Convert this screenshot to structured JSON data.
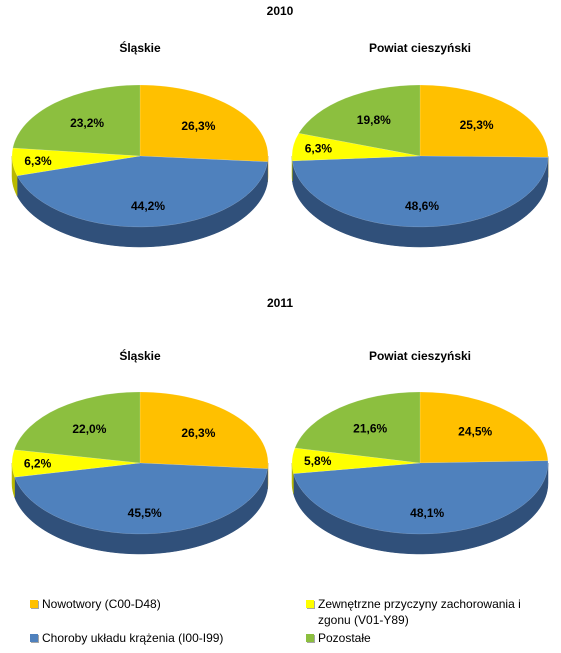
{
  "categories": [
    "Nowotwory  (C00-D48)",
    "Choroby układu krążenia  (I00-I99)",
    "Zewnętrzne przyczyny zachorowania i zgonu (V01-Y89)",
    "Pozostałe"
  ],
  "colors": {
    "Nowotwory": "#FFC000",
    "Choroby układu krążenia": "#4F81BD",
    "Zewnętrzne przyczyny": "#FFFF00",
    "Pozostałe": "#8CBF3F"
  },
  "chart_data": [
    {
      "type": "pie",
      "year": "2010",
      "title": "Śląskie",
      "slices": [
        {
          "category": "Nowotwory  (C00-D48)",
          "value": 26.3,
          "label": "26,3%"
        },
        {
          "category": "Choroby układu krążenia  (I00-I99)",
          "value": 44.2,
          "label": "44,2%"
        },
        {
          "category": "Zewnętrzne przyczyny zachorowania i zgonu (V01-Y89)",
          "value": 6.3,
          "label": "6,3%"
        },
        {
          "category": "Pozostałe",
          "value": 23.2,
          "label": "23,2%"
        }
      ]
    },
    {
      "type": "pie",
      "year": "2010",
      "title": "Powiat cieszyński",
      "slices": [
        {
          "category": "Nowotwory  (C00-D48)",
          "value": 25.3,
          "label": "25,3%"
        },
        {
          "category": "Choroby układu krążenia  (I00-I99)",
          "value": 48.6,
          "label": "48,6%"
        },
        {
          "category": "Zewnętrzne przyczyny zachorowania i zgonu (V01-Y89)",
          "value": 6.3,
          "label": "6,3%"
        },
        {
          "category": "Pozostałe",
          "value": 19.8,
          "label": "19,8%"
        }
      ]
    },
    {
      "type": "pie",
      "year": "2011",
      "title": "Śląskie",
      "slices": [
        {
          "category": "Nowotwory  (C00-D48)",
          "value": 26.3,
          "label": "26,3%"
        },
        {
          "category": "Choroby układu krążenia  (I00-I99)",
          "value": 45.5,
          "label": "45,5%"
        },
        {
          "category": "Zewnętrzne przyczyny zachorowania i zgonu (V01-Y89)",
          "value": 6.2,
          "label": "6,2%"
        },
        {
          "category": "Pozostałe",
          "value": 22.0,
          "label": "22,0%"
        }
      ]
    },
    {
      "type": "pie",
      "year": "2011",
      "title": "Powiat cieszyński",
      "slices": [
        {
          "category": "Nowotwory  (C00-D48)",
          "value": 24.5,
          "label": "24,5%"
        },
        {
          "category": "Choroby układu krążenia  (I00-I99)",
          "value": 48.1,
          "label": "48,1%"
        },
        {
          "category": "Zewnętrzne przyczyny zachorowania i zgonu (V01-Y89)",
          "value": 5.8,
          "label": "5,8%"
        },
        {
          "category": "Pozostałe",
          "value": 21.6,
          "label": "21,6%"
        }
      ]
    }
  ]
}
